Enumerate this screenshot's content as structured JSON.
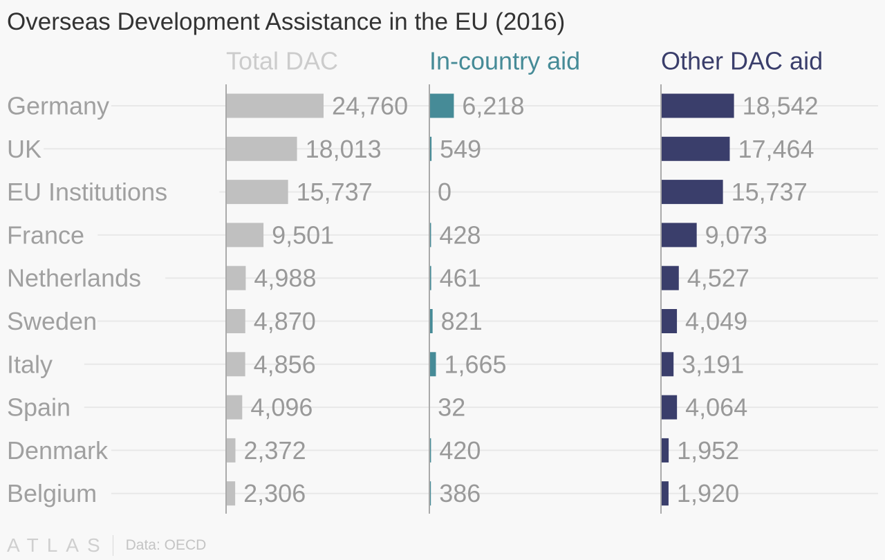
{
  "title": "Overseas Development Assistance in the EU (2016)",
  "footer": {
    "brand": "ATLAS",
    "source": "Data: OECD"
  },
  "chart_data": {
    "type": "bar",
    "orientation": "horizontal",
    "layout": "small-multiples",
    "categories": [
      "Germany",
      "UK",
      "EU Institutions",
      "France",
      "Netherlands",
      "Sweden",
      "Italy",
      "Spain",
      "Denmark",
      "Belgium"
    ],
    "series": [
      {
        "name": "Total DAC",
        "color": "#c0c0c0",
        "header_color": "#cccccc",
        "values": [
          24760,
          18013,
          15737,
          9501,
          4988,
          4870,
          4856,
          4096,
          2372,
          2306
        ],
        "labels": [
          "24,760",
          "18,013",
          "15,737",
          "9,501",
          "4,988",
          "4,870",
          "4,856",
          "4,096",
          "2,372",
          "2,306"
        ]
      },
      {
        "name": "In-country aid",
        "color": "#468b97",
        "header_color": "#468b97",
        "values": [
          6218,
          549,
          0,
          428,
          461,
          821,
          1665,
          32,
          420,
          386
        ],
        "labels": [
          "6,218",
          "549",
          "0",
          "428",
          "461",
          "821",
          "1,665",
          "32",
          "420",
          "386"
        ]
      },
      {
        "name": "Other DAC aid",
        "color": "#3a3e6b",
        "header_color": "#3a3e6b",
        "values": [
          18542,
          17464,
          15737,
          9073,
          4527,
          4049,
          3191,
          4064,
          1952,
          1920
        ],
        "labels": [
          "18,542",
          "17,464",
          "15,737",
          "9,073",
          "4,527",
          "4,049",
          "3,191",
          "4,064",
          "1,952",
          "1,920"
        ]
      }
    ],
    "grid": true,
    "legend": "column headers"
  }
}
